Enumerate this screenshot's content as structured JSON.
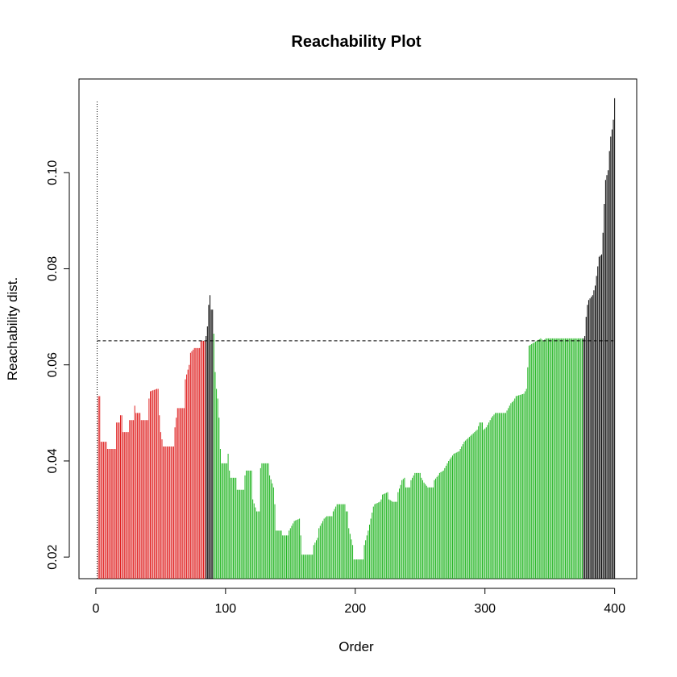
{
  "chart_data": {
    "type": "bar",
    "title": "Reachability Plot",
    "xlabel": "Order",
    "ylabel": "Reachability dist.",
    "xlim": [
      -13,
      417
    ],
    "ylim": [
      0.0155,
      0.1195
    ],
    "x_ticks": [
      0,
      100,
      200,
      300,
      400
    ],
    "y_ticks": [
      0.02,
      0.04,
      0.06,
      0.08,
      0.1
    ],
    "x_tick_labels": [
      "0",
      "100",
      "200",
      "300",
      "400"
    ],
    "y_tick_labels": [
      "0.02",
      "0.04",
      "0.06",
      "0.08",
      "0.10"
    ],
    "threshold": 0.065,
    "first_point_max": 0.115,
    "n_points": 400,
    "colors": {
      "cluster_red": "#df1f1f",
      "cluster_green": "#22b522",
      "noise": "#000000",
      "threshold_line": "#000000"
    },
    "series": [
      {
        "name": "cluster 1",
        "color": "#df1f1f",
        "x_range": [
          2,
          84
        ],
        "y_profile": [
          [
            2,
            0.0535
          ],
          [
            3,
            0.0535
          ],
          [
            4,
            0.044
          ],
          [
            8,
            0.044
          ],
          [
            9,
            0.0425
          ],
          [
            15,
            0.0425
          ],
          [
            16,
            0.048
          ],
          [
            18,
            0.048
          ],
          [
            19,
            0.0495
          ],
          [
            20,
            0.0495
          ],
          [
            21,
            0.046
          ],
          [
            25,
            0.046
          ],
          [
            26,
            0.0485
          ],
          [
            29,
            0.0485
          ],
          [
            30,
            0.0515
          ],
          [
            31,
            0.05
          ],
          [
            34,
            0.05
          ],
          [
            35,
            0.0485
          ],
          [
            40,
            0.0485
          ],
          [
            41,
            0.053
          ],
          [
            42,
            0.0545
          ],
          [
            47,
            0.055
          ],
          [
            48,
            0.055
          ],
          [
            49,
            0.0495
          ],
          [
            50,
            0.046
          ],
          [
            52,
            0.043
          ],
          [
            60,
            0.043
          ],
          [
            61,
            0.047
          ],
          [
            63,
            0.051
          ],
          [
            68,
            0.051
          ],
          [
            69,
            0.057
          ],
          [
            72,
            0.06
          ],
          [
            73,
            0.0625
          ],
          [
            76,
            0.0635
          ],
          [
            80,
            0.0635
          ],
          [
            81,
            0.065
          ],
          [
            84,
            0.065
          ]
        ]
      },
      {
        "name": "noise",
        "color": "#000000",
        "x_range": [
          85,
          90
        ],
        "y_profile": [
          [
            85,
            0.066
          ],
          [
            86,
            0.068
          ],
          [
            87,
            0.0725
          ],
          [
            88,
            0.0745
          ],
          [
            89,
            0.0715
          ],
          [
            90,
            0.0715
          ]
        ]
      },
      {
        "name": "cluster 2",
        "color": "#22b522",
        "x_range": [
          91,
          375
        ],
        "y_profile": [
          [
            91,
            0.0665
          ],
          [
            92,
            0.0585
          ],
          [
            93,
            0.055
          ],
          [
            94,
            0.053
          ],
          [
            95,
            0.049
          ],
          [
            96,
            0.0425
          ],
          [
            97,
            0.0395
          ],
          [
            101,
            0.0395
          ],
          [
            102,
            0.0415
          ],
          [
            103,
            0.038
          ],
          [
            104,
            0.0365
          ],
          [
            108,
            0.0365
          ],
          [
            109,
            0.034
          ],
          [
            114,
            0.034
          ],
          [
            115,
            0.037
          ],
          [
            116,
            0.038
          ],
          [
            120,
            0.038
          ],
          [
            121,
            0.032
          ],
          [
            124,
            0.0295
          ],
          [
            126,
            0.0295
          ],
          [
            127,
            0.0385
          ],
          [
            128,
            0.0395
          ],
          [
            133,
            0.0395
          ],
          [
            134,
            0.037
          ],
          [
            137,
            0.0345
          ],
          [
            138,
            0.031
          ],
          [
            139,
            0.0255
          ],
          [
            143,
            0.0255
          ],
          [
            144,
            0.0245
          ],
          [
            148,
            0.0245
          ],
          [
            149,
            0.0255
          ],
          [
            151,
            0.0265
          ],
          [
            152,
            0.027
          ],
          [
            153,
            0.0275
          ],
          [
            157,
            0.028
          ],
          [
            158,
            0.0245
          ],
          [
            159,
            0.0205
          ],
          [
            167,
            0.0205
          ],
          [
            168,
            0.0225
          ],
          [
            171,
            0.024
          ],
          [
            172,
            0.026
          ],
          [
            175,
            0.0275
          ],
          [
            176,
            0.028
          ],
          [
            178,
            0.0285
          ],
          [
            182,
            0.0285
          ],
          [
            183,
            0.0295
          ],
          [
            185,
            0.0305
          ],
          [
            186,
            0.031
          ],
          [
            192,
            0.031
          ],
          [
            193,
            0.0295
          ],
          [
            194,
            0.0295
          ],
          [
            195,
            0.026
          ],
          [
            198,
            0.0225
          ],
          [
            199,
            0.0195
          ],
          [
            206,
            0.0195
          ],
          [
            207,
            0.0225
          ],
          [
            210,
            0.0255
          ],
          [
            212,
            0.028
          ],
          [
            214,
            0.0305
          ],
          [
            215,
            0.031
          ],
          [
            219,
            0.0315
          ],
          [
            220,
            0.032
          ],
          [
            221,
            0.033
          ],
          [
            225,
            0.0335
          ],
          [
            226,
            0.032
          ],
          [
            229,
            0.0315
          ],
          [
            232,
            0.0315
          ],
          [
            233,
            0.0335
          ],
          [
            235,
            0.035
          ],
          [
            236,
            0.036
          ],
          [
            238,
            0.0365
          ],
          [
            239,
            0.0345
          ],
          [
            242,
            0.0345
          ],
          [
            243,
            0.036
          ],
          [
            246,
            0.0375
          ],
          [
            250,
            0.0375
          ],
          [
            251,
            0.0365
          ],
          [
            253,
            0.0355
          ],
          [
            256,
            0.0345
          ],
          [
            260,
            0.0345
          ],
          [
            261,
            0.036
          ],
          [
            264,
            0.037
          ],
          [
            265,
            0.0375
          ],
          [
            268,
            0.038
          ],
          [
            270,
            0.039
          ],
          [
            272,
            0.04
          ],
          [
            276,
            0.0415
          ],
          [
            280,
            0.042
          ],
          [
            284,
            0.044
          ],
          [
            288,
            0.045
          ],
          [
            294,
            0.0465
          ],
          [
            296,
            0.048
          ],
          [
            298,
            0.048
          ],
          [
            299,
            0.0465
          ],
          [
            301,
            0.047
          ],
          [
            305,
            0.049
          ],
          [
            308,
            0.05
          ],
          [
            316,
            0.05
          ],
          [
            318,
            0.051
          ],
          [
            320,
            0.052
          ],
          [
            322,
            0.0525
          ],
          [
            324,
            0.0535
          ],
          [
            330,
            0.054
          ],
          [
            332,
            0.055
          ],
          [
            334,
            0.064
          ],
          [
            337,
            0.0645
          ],
          [
            340,
            0.065
          ],
          [
            343,
            0.0655
          ],
          [
            345,
            0.065
          ],
          [
            347,
            0.0655
          ],
          [
            349,
            0.0655
          ],
          [
            375,
            0.0655
          ]
        ]
      },
      {
        "name": "noise",
        "color": "#000000",
        "x_range": [
          376,
          400
        ],
        "y_profile": [
          [
            376,
            0.0655
          ],
          [
            377,
            0.066
          ],
          [
            378,
            0.07
          ],
          [
            379,
            0.0725
          ],
          [
            380,
            0.0735
          ],
          [
            383,
            0.0745
          ],
          [
            384,
            0.0755
          ],
          [
            385,
            0.0765
          ],
          [
            386,
            0.0785
          ],
          [
            387,
            0.0805
          ],
          [
            388,
            0.0825
          ],
          [
            390,
            0.083
          ],
          [
            391,
            0.0875
          ],
          [
            392,
            0.0935
          ],
          [
            393,
            0.0985
          ],
          [
            394,
            0.0995
          ],
          [
            395,
            0.1005
          ],
          [
            396,
            0.1045
          ],
          [
            397,
            0.1075
          ],
          [
            398,
            0.109
          ],
          [
            399,
            0.111
          ],
          [
            400,
            0.1155
          ]
        ]
      }
    ]
  }
}
